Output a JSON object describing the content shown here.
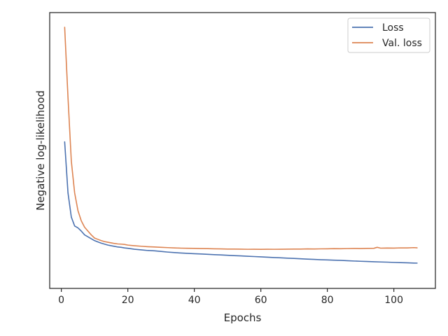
{
  "chart_data": {
    "type": "line",
    "title": "",
    "xlabel": "Epochs",
    "ylabel": "Negative log-likelihood",
    "xlim": [
      -3.5,
      112.5
    ],
    "ylim": [
      0.3,
      4.63
    ],
    "x_ticks": [
      0,
      20,
      40,
      60,
      80,
      100
    ],
    "y_ticks_shown": false,
    "grid": false,
    "legend_placement": "top-right",
    "series": [
      {
        "name": "Loss",
        "color": "#4c72b0",
        "points": [
          [
            1,
            2.6
          ],
          [
            2,
            1.8
          ],
          [
            3,
            1.42
          ],
          [
            4,
            1.28
          ],
          [
            5,
            1.25
          ],
          [
            6,
            1.2
          ],
          [
            7,
            1.14
          ],
          [
            8,
            1.11
          ],
          [
            9,
            1.08
          ],
          [
            10,
            1.05
          ],
          [
            11,
            1.03
          ],
          [
            12,
            1.01
          ],
          [
            13,
            0.995
          ],
          [
            14,
            0.98
          ],
          [
            15,
            0.97
          ],
          [
            16,
            0.96
          ],
          [
            17,
            0.95
          ],
          [
            18,
            0.945
          ],
          [
            19,
            0.935
          ],
          [
            20,
            0.93
          ],
          [
            22,
            0.915
          ],
          [
            24,
            0.905
          ],
          [
            26,
            0.895
          ],
          [
            28,
            0.89
          ],
          [
            30,
            0.88
          ],
          [
            32,
            0.87
          ],
          [
            34,
            0.862
          ],
          [
            36,
            0.856
          ],
          [
            38,
            0.85
          ],
          [
            40,
            0.845
          ],
          [
            42,
            0.84
          ],
          [
            44,
            0.835
          ],
          [
            46,
            0.83
          ],
          [
            48,
            0.825
          ],
          [
            50,
            0.82
          ],
          [
            52,
            0.815
          ],
          [
            54,
            0.81
          ],
          [
            56,
            0.805
          ],
          [
            58,
            0.8
          ],
          [
            60,
            0.795
          ],
          [
            62,
            0.79
          ],
          [
            64,
            0.784
          ],
          [
            66,
            0.78
          ],
          [
            68,
            0.775
          ],
          [
            70,
            0.77
          ],
          [
            72,
            0.765
          ],
          [
            74,
            0.76
          ],
          [
            76,
            0.755
          ],
          [
            78,
            0.75
          ],
          [
            80,
            0.747
          ],
          [
            82,
            0.743
          ],
          [
            84,
            0.74
          ],
          [
            86,
            0.735
          ],
          [
            88,
            0.73
          ],
          [
            90,
            0.726
          ],
          [
            92,
            0.722
          ],
          [
            94,
            0.718
          ],
          [
            96,
            0.715
          ],
          [
            98,
            0.712
          ],
          [
            100,
            0.708
          ],
          [
            102,
            0.705
          ],
          [
            104,
            0.702
          ],
          [
            106,
            0.698
          ],
          [
            107,
            0.697
          ]
        ]
      },
      {
        "name": "Val. loss",
        "color": "#dd8452",
        "points": [
          [
            1,
            4.4
          ],
          [
            2,
            3.3
          ],
          [
            3,
            2.3
          ],
          [
            4,
            1.8
          ],
          [
            5,
            1.52
          ],
          [
            6,
            1.36
          ],
          [
            7,
            1.26
          ],
          [
            8,
            1.2
          ],
          [
            9,
            1.14
          ],
          [
            10,
            1.09
          ],
          [
            11,
            1.07
          ],
          [
            12,
            1.05
          ],
          [
            13,
            1.035
          ],
          [
            14,
            1.025
          ],
          [
            15,
            1.015
          ],
          [
            16,
            1.005
          ],
          [
            17,
            0.998
          ],
          [
            18,
            0.995
          ],
          [
            19,
            0.99
          ],
          [
            20,
            0.98
          ],
          [
            22,
            0.97
          ],
          [
            24,
            0.962
          ],
          [
            26,
            0.955
          ],
          [
            28,
            0.95
          ],
          [
            30,
            0.945
          ],
          [
            32,
            0.94
          ],
          [
            34,
            0.935
          ],
          [
            36,
            0.932
          ],
          [
            38,
            0.93
          ],
          [
            40,
            0.928
          ],
          [
            42,
            0.926
          ],
          [
            44,
            0.924
          ],
          [
            46,
            0.922
          ],
          [
            48,
            0.92
          ],
          [
            50,
            0.918
          ],
          [
            52,
            0.917
          ],
          [
            54,
            0.916
          ],
          [
            56,
            0.914
          ],
          [
            58,
            0.915
          ],
          [
            60,
            0.913
          ],
          [
            62,
            0.915
          ],
          [
            64,
            0.914
          ],
          [
            66,
            0.915
          ],
          [
            68,
            0.916
          ],
          [
            70,
            0.917
          ],
          [
            72,
            0.918
          ],
          [
            74,
            0.92
          ],
          [
            76,
            0.919
          ],
          [
            78,
            0.921
          ],
          [
            80,
            0.922
          ],
          [
            82,
            0.924
          ],
          [
            84,
            0.923
          ],
          [
            86,
            0.925
          ],
          [
            88,
            0.927
          ],
          [
            90,
            0.926
          ],
          [
            92,
            0.928
          ],
          [
            94,
            0.93
          ],
          [
            95,
            0.945
          ],
          [
            96,
            0.932
          ],
          [
            98,
            0.934
          ],
          [
            100,
            0.933
          ],
          [
            102,
            0.936
          ],
          [
            104,
            0.935
          ],
          [
            106,
            0.94
          ],
          [
            107,
            0.937
          ]
        ]
      }
    ]
  }
}
